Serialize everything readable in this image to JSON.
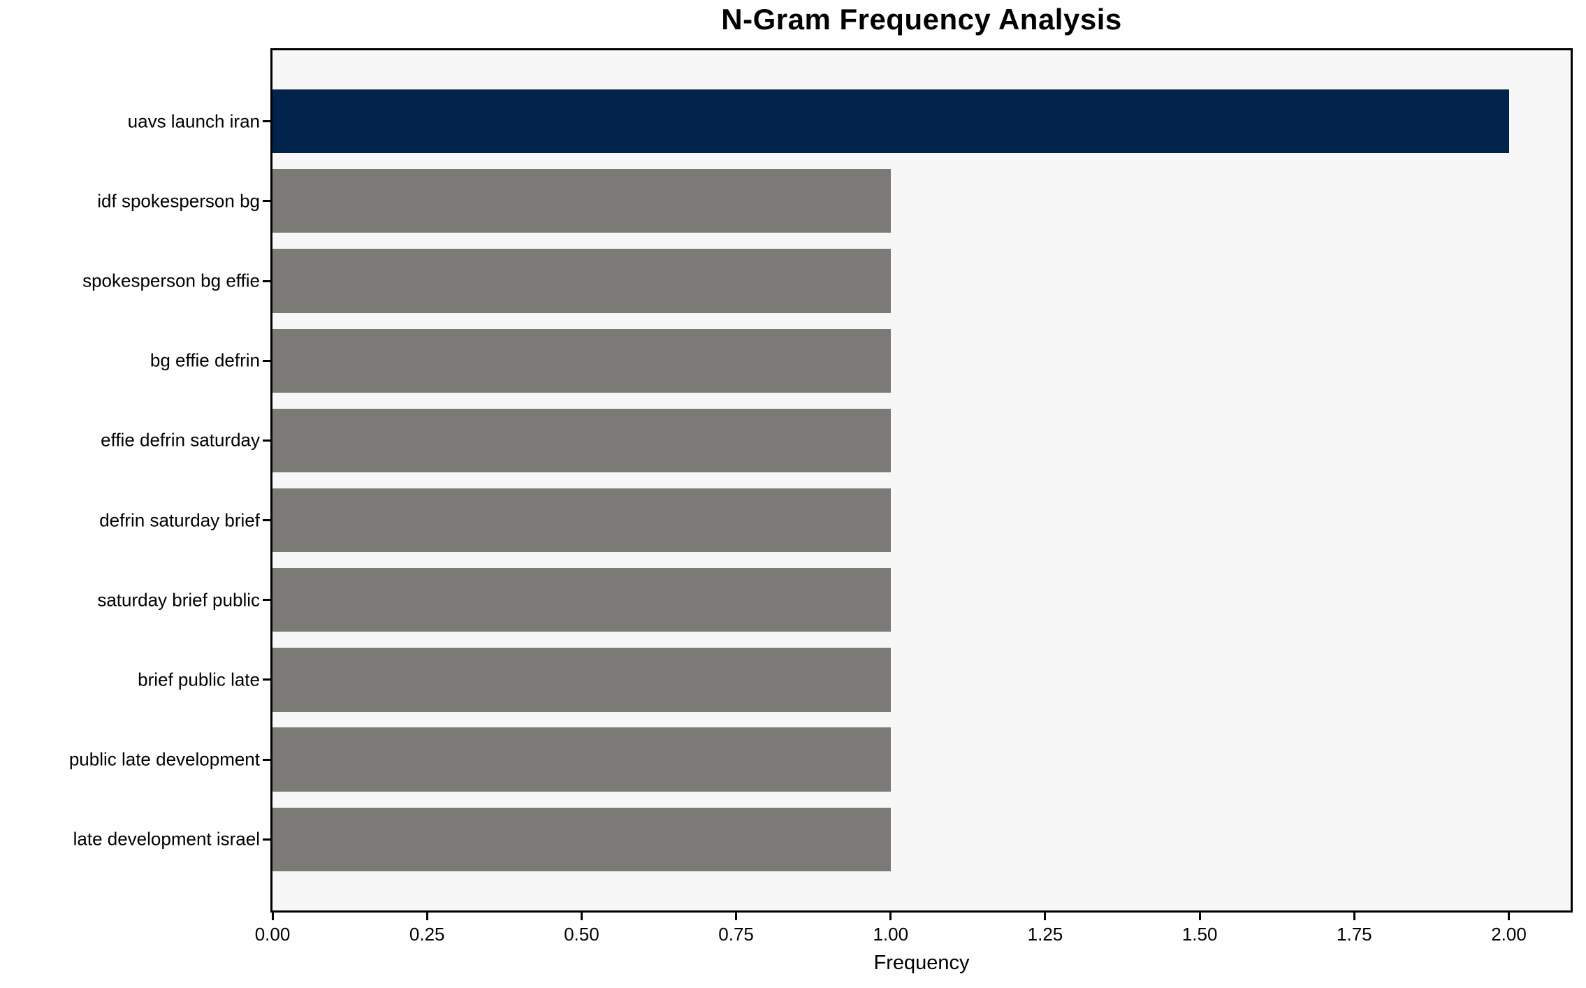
{
  "chart_data": {
    "type": "bar",
    "orientation": "horizontal",
    "title": "N-Gram Frequency Analysis",
    "xlabel": "Frequency",
    "ylabel": "",
    "categories": [
      "uavs launch iran",
      "idf spokesperson bg",
      "spokesperson bg effie",
      "bg effie defrin",
      "effie defrin saturday",
      "defrin saturday brief",
      "saturday brief public",
      "brief public late",
      "public late development",
      "late development israel"
    ],
    "values": [
      2,
      1,
      1,
      1,
      1,
      1,
      1,
      1,
      1,
      1
    ],
    "bar_colors": [
      "#02234c",
      "#7b7a76",
      "#7b7a76",
      "#7b7a76",
      "#7b7a76",
      "#7b7a76",
      "#7b7a76",
      "#7b7a76",
      "#7b7a76",
      "#7b7a76"
    ],
    "highlight_color": "#02234c",
    "default_bar_color": "#7b7a76",
    "xlim": [
      0,
      2.1
    ],
    "xticks": [
      0,
      0.25,
      0.5,
      0.75,
      1.0,
      1.25,
      1.5,
      1.75,
      2.0
    ],
    "xtick_labels": [
      "0.00",
      "0.25",
      "0.50",
      "0.75",
      "1.00",
      "1.25",
      "1.50",
      "1.75",
      "2.00"
    ],
    "bar_height_fraction": 0.8,
    "y_axis_margin": 0.89,
    "grid": false,
    "legend": null,
    "plot_background": "#f7f7f7",
    "figure_background": "#ffffff",
    "spine_color": "#000000",
    "text_color": "#000000"
  }
}
